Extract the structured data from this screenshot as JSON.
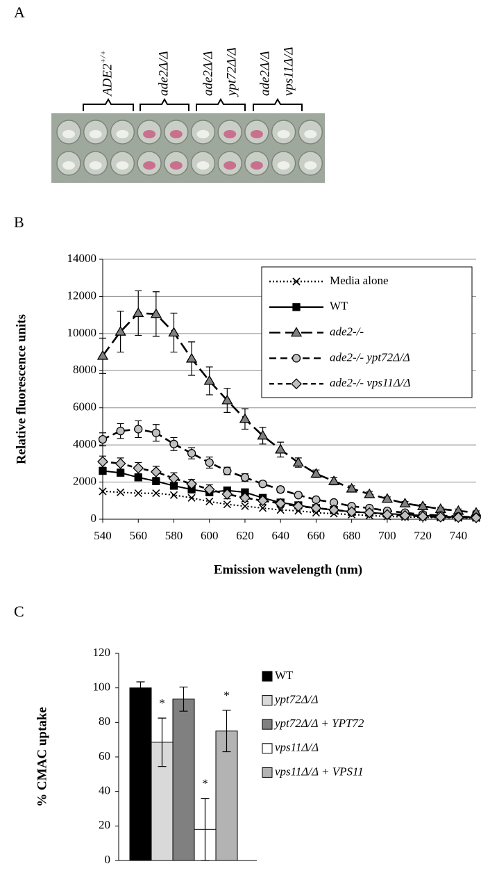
{
  "figure": {
    "panel_a": {
      "label": "A",
      "strains": [
        {
          "lines": [
            "ADE2"
          ],
          "sup": "+/+"
        },
        {
          "lines": [
            "ade2Δ/Δ"
          ]
        },
        {
          "lines": [
            "ade2Δ/Δ",
            "ypt72Δ/Δ"
          ]
        },
        {
          "lines": [
            "ade2Δ/Δ",
            "vps11Δ/Δ"
          ]
        }
      ]
    }
  },
  "chart_data": [
    {
      "type": "line",
      "panel_label": "B",
      "ylabel": "Relative fluorescence units",
      "xlabel": "Emission wavelength (nm)",
      "x": [
        540,
        550,
        560,
        570,
        580,
        590,
        600,
        610,
        620,
        630,
        640,
        650,
        660,
        670,
        680,
        690,
        700,
        710,
        720,
        730,
        740,
        750
      ],
      "xlim": [
        540,
        750
      ],
      "xticks": [
        540,
        560,
        580,
        600,
        620,
        640,
        660,
        680,
        700,
        720,
        740
      ],
      "ylim": [
        0,
        14000
      ],
      "yticks": [
        0,
        2000,
        4000,
        6000,
        8000,
        10000,
        12000,
        14000
      ],
      "grid": true,
      "legend": "upper right",
      "series": [
        {
          "name": "Media alone",
          "color": "#000000",
          "marker": "x",
          "dash": "dotted",
          "values": [
            1500,
            1450,
            1400,
            1400,
            1300,
            1150,
            950,
            800,
            700,
            600,
            500,
            450,
            350,
            300,
            250,
            200,
            150,
            120,
            100,
            80,
            70,
            60
          ]
        },
        {
          "name": "WT",
          "color": "#000000",
          "marker": "square",
          "dash": "solid",
          "values": [
            2600,
            2500,
            2250,
            2050,
            1800,
            1600,
            1450,
            1550,
            1450,
            1150,
            900,
            750,
            600,
            500,
            400,
            350,
            300,
            250,
            200,
            150,
            120,
            100
          ]
        },
        {
          "name": "ade2-/-",
          "color": "#808080",
          "marker": "triangle",
          "dash": "long-dash",
          "values": [
            8800,
            10100,
            11100,
            11050,
            10050,
            8650,
            7450,
            6400,
            5400,
            4500,
            3750,
            3050,
            2450,
            2050,
            1650,
            1350,
            1100,
            850,
            700,
            550,
            450,
            350
          ],
          "errors": [
            950,
            1100,
            1200,
            1200,
            1050,
            900,
            750,
            650,
            550,
            450,
            400,
            250,
            200,
            200,
            150,
            150,
            100,
            100,
            100,
            100,
            100,
            100
          ]
        },
        {
          "name": "ade2-/- ypt72Δ/Δ",
          "color": "#c0c0c0",
          "marker": "circle",
          "dash": "dash",
          "values": [
            4300,
            4750,
            4850,
            4650,
            4050,
            3550,
            3050,
            2600,
            2250,
            1900,
            1600,
            1300,
            1050,
            900,
            700,
            600,
            450,
            350,
            250,
            200,
            150,
            100
          ],
          "errors": [
            350,
            400,
            450,
            450,
            350,
            300,
            300,
            200,
            200,
            150,
            150,
            100,
            100,
            100,
            100,
            100,
            100,
            100,
            100,
            100,
            100,
            100
          ]
        },
        {
          "name": "ade2-/- vps11Δ/Δ",
          "color": "#bfbfbf",
          "marker": "diamond",
          "dash": "short-dash",
          "values": [
            3100,
            3000,
            2750,
            2550,
            2200,
            1900,
            1600,
            1350,
            1150,
            1000,
            850,
            700,
            600,
            500,
            400,
            350,
            250,
            200,
            150,
            120,
            100,
            80
          ],
          "errors": [
            300,
            300,
            300,
            300,
            300,
            250,
            250,
            250,
            200,
            200,
            200,
            150,
            150,
            150,
            150,
            100,
            100,
            100,
            100,
            100,
            100,
            100
          ]
        }
      ]
    },
    {
      "type": "bar",
      "panel_label": "C",
      "ylabel": "% CMAC uptake",
      "categories": [
        "WT",
        "ypt72Δ/Δ",
        "ypt72Δ/Δ + YPT72",
        "vps11Δ/Δ",
        "vps11Δ/Δ + VPS11"
      ],
      "values": [
        100,
        68.5,
        93.5,
        18,
        75
      ],
      "errors": [
        3.5,
        14,
        7,
        18,
        12
      ],
      "colors": [
        "#000000",
        "#d9d9d9",
        "#808080",
        "#ffffff",
        "#b3b3b3"
      ],
      "ylim": [
        0,
        120
      ],
      "yticks": [
        0,
        20,
        40,
        60,
        80,
        100,
        120
      ],
      "grid": false,
      "legend": "right",
      "annotations": [
        {
          "text": "*",
          "category": "ypt72Δ/Δ"
        },
        {
          "text": "*",
          "category": "vps11Δ/Δ"
        },
        {
          "text": "*",
          "category": "vps11Δ/Δ + VPS11"
        }
      ]
    }
  ]
}
